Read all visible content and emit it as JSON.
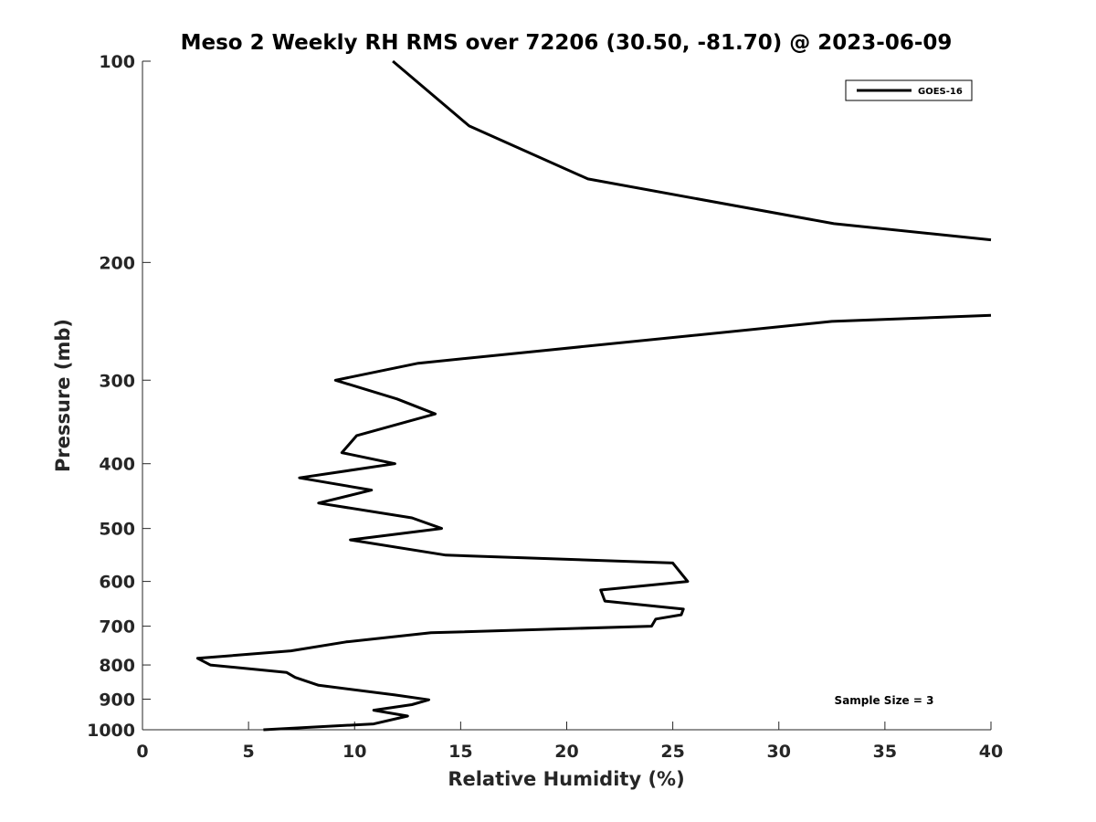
{
  "chart_data": {
    "type": "line",
    "title": "Meso 2 Weekly RH RMS over 72206 (30.50, -81.70) @ 2023-06-09",
    "xlabel": "Relative Humidity (%)",
    "ylabel": "Pressure (mb)",
    "xlim": [
      0,
      40
    ],
    "ylim": [
      100,
      1000
    ],
    "yscale": "log",
    "y_reversed": true,
    "x_ticks": [
      0,
      5,
      10,
      15,
      20,
      25,
      30,
      35,
      40
    ],
    "y_ticks": [
      100,
      200,
      300,
      400,
      500,
      600,
      700,
      800,
      900,
      1000
    ],
    "grid": false,
    "legend_position": "top-right",
    "annotation": "Sample Size = 3",
    "series": [
      {
        "name": "GOES-16",
        "color": "#000000",
        "segments": [
          {
            "x": [
              11.8,
              15.4,
              21.0,
              32.6,
              40.0
            ],
            "y": [
              100,
              125,
              150,
              175,
              185
            ]
          },
          {
            "x": [
              40.0,
              32.5,
              13.0,
              9.1,
              12.0,
              13.8,
              10.1,
              9.4,
              11.9,
              7.4,
              10.8,
              8.3,
              12.7,
              14.1,
              9.8,
              14.3,
              25.0,
              25.7,
              21.6,
              21.8,
              25.5,
              25.4,
              24.2,
              24.0,
              13.6,
              9.6,
              7.0,
              2.6,
              3.2,
              6.8,
              7.2,
              8.3,
              11.9,
              13.5,
              12.7,
              10.9,
              12.5,
              10.9,
              5.7
            ],
            "y": [
              240,
              245,
              283,
              300,
              320,
              337,
              363,
              385,
              400,
              420,
              438,
              458,
              482,
              500,
              520,
              548,
              563,
              600,
              618,
              642,
              660,
              673,
              683,
              700,
              716,
              739,
              762,
              782,
              800,
              821,
              835,
              858,
              887,
              902,
              917,
              935,
              954,
              980,
              1000
            ]
          }
        ]
      }
    ]
  }
}
